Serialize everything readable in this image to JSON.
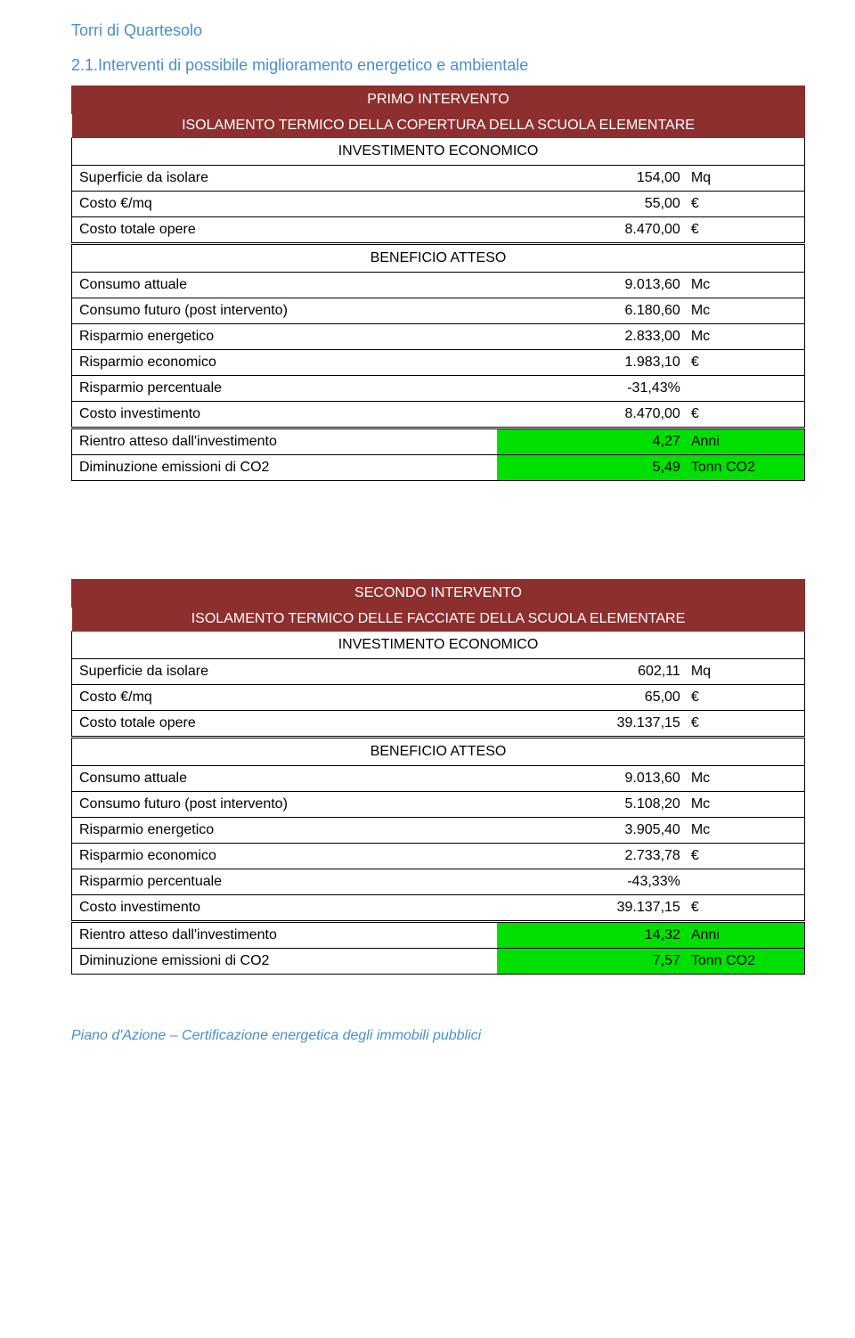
{
  "page": {
    "header": "Torri di Quartesolo",
    "section": "2.1.Interventi di possibile miglioramento energetico e ambientale",
    "footer": "Piano d'Azione – Certificazione energetica degli immobili pubblici"
  },
  "labels": {
    "investimento": "INVESTIMENTO ECONOMICO",
    "beneficio": "BENEFICIO ATTESO"
  },
  "tables": [
    {
      "title": "PRIMO INTERVENTO",
      "subtitle": "ISOLAMENTO TERMICO DELLA COPERTURA DELLA SCUOLA ELEMENTARE",
      "invest_rows": [
        {
          "label": "Superficie da isolare",
          "value": "154,00",
          "unit": "Mq"
        },
        {
          "label": "Costo €/mq",
          "value": "55,00",
          "unit": "€"
        },
        {
          "label": "Costo totale opere",
          "value": "8.470,00",
          "unit": "€",
          "heavy": true
        }
      ],
      "benefit_rows": [
        {
          "label": "Consumo attuale",
          "value": "9.013,60",
          "unit": "Mc"
        },
        {
          "label": "Consumo futuro (post intervento)",
          "value": "6.180,60",
          "unit": "Mc"
        },
        {
          "label": "Risparmio energetico",
          "value": "2.833,00",
          "unit": "Mc"
        },
        {
          "label": "Risparmio economico",
          "value": "1.983,10",
          "unit": "€"
        },
        {
          "label": "Risparmio percentuale",
          "value": "-31,43%",
          "unit": ""
        },
        {
          "label": "Costo investimento",
          "value": "8.470,00",
          "unit": "€",
          "heavy": true
        },
        {
          "label": "Rientro atteso dall'investimento",
          "value": "4,27",
          "unit": "Anni",
          "green": true
        },
        {
          "label": "Diminuzione emissioni di CO2",
          "value": "5,49",
          "unit": "Tonn CO2",
          "green": true
        }
      ]
    },
    {
      "title": "SECONDO INTERVENTO",
      "subtitle": "ISOLAMENTO TERMICO DELLE FACCIATE DELLA SCUOLA ELEMENTARE",
      "invest_rows": [
        {
          "label": "Superficie da isolare",
          "value": "602,11",
          "unit": "Mq"
        },
        {
          "label": "Costo €/mq",
          "value": "65,00",
          "unit": "€"
        },
        {
          "label": "Costo totale opere",
          "value": "39.137,15",
          "unit": "€",
          "heavy": true
        }
      ],
      "benefit_rows": [
        {
          "label": "Consumo attuale",
          "value": "9.013,60",
          "unit": "Mc"
        },
        {
          "label": "Consumo futuro (post intervento)",
          "value": "5.108,20",
          "unit": "Mc"
        },
        {
          "label": "Risparmio energetico",
          "value": "3.905,40",
          "unit": "Mc"
        },
        {
          "label": "Risparmio economico",
          "value": "2.733,78",
          "unit": "€"
        },
        {
          "label": "Risparmio percentuale",
          "value": "-43,33%",
          "unit": ""
        },
        {
          "label": "Costo investimento",
          "value": "39.137,15",
          "unit": "€",
          "heavy": true
        },
        {
          "label": "Rientro atteso dall'investimento",
          "value": "14,32",
          "unit": "Anni",
          "green": true
        },
        {
          "label": "Diminuzione emissioni di CO2",
          "value": "7,57",
          "unit": "Tonn CO2",
          "green": true
        }
      ]
    }
  ],
  "colors": {
    "header_text": "#4a8fc9",
    "banner_bg": "#8c2f2e",
    "banner_text": "#ffffff",
    "highlight_bg": "#00e000",
    "border": "#000000",
    "background": "#ffffff"
  }
}
